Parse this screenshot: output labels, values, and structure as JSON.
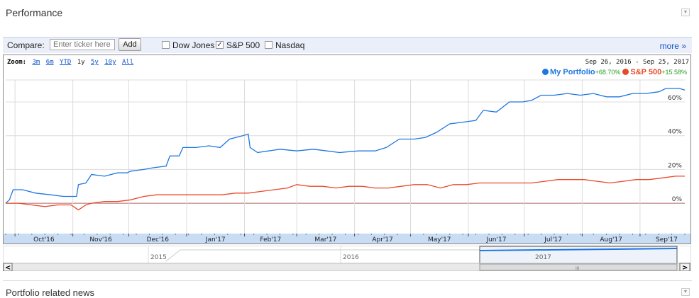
{
  "header": {
    "title": "Performance"
  },
  "compare": {
    "label": "Compare:",
    "placeholder": "Enter ticker here",
    "add_label": "Add",
    "options": [
      {
        "label": "Dow Jones",
        "checked": false
      },
      {
        "label": "S&P 500",
        "checked": true
      },
      {
        "label": "Nasdaq",
        "checked": false
      }
    ],
    "more_label": "more »"
  },
  "zoom": {
    "label": "Zoom:",
    "options": [
      "3m",
      "6m",
      "YTD",
      "1y",
      "5y",
      "10y",
      "All"
    ],
    "active": "1y"
  },
  "date_range": "Sep 26, 2016 - Sep 25, 2017",
  "legend": [
    {
      "name": "My Portfolio",
      "change": "+68.70%",
      "color": "#1f77e0"
    },
    {
      "name": "S&P 500",
      "change": "+15.58%",
      "color": "#e8492a"
    }
  ],
  "navigator": {
    "years": [
      "2015",
      "2016",
      "2017"
    ],
    "left_arrow": "<",
    "right_arrow": ">",
    "thumb_grip": "III"
  },
  "footer": {
    "news_title": "Portfolio related news"
  },
  "chart_data": {
    "type": "line",
    "x_ticks": [
      "Oct'16",
      "Nov'16",
      "Dec'16",
      "Jan'17",
      "Feb'17",
      "Mar'17",
      "Apr'17",
      "May'17",
      "Jun'17",
      "Jul'17",
      "Aug'17",
      "Sep'17"
    ],
    "y_ticks": [
      "0%",
      "20%",
      "40%",
      "60%"
    ],
    "ylim": [
      -18,
      73
    ],
    "x_range": [
      "2016-09-26",
      "2017-09-25"
    ],
    "grid": true,
    "series": [
      {
        "name": "My Portfolio",
        "color": "#1f77e0",
        "points": [
          [
            "2016-09-26",
            0
          ],
          [
            "2016-09-28",
            2
          ],
          [
            "2016-09-30",
            8
          ],
          [
            "2016-10-05",
            8
          ],
          [
            "2016-10-12",
            6
          ],
          [
            "2016-10-20",
            5
          ],
          [
            "2016-10-27",
            4
          ],
          [
            "2016-11-03",
            4
          ],
          [
            "2016-11-04",
            11
          ],
          [
            "2016-11-08",
            12
          ],
          [
            "2016-11-11",
            17
          ],
          [
            "2016-11-18",
            16
          ],
          [
            "2016-11-25",
            18
          ],
          [
            "2016-11-30",
            18
          ],
          [
            "2016-12-02",
            19
          ],
          [
            "2016-12-09",
            20
          ],
          [
            "2016-12-14",
            21
          ],
          [
            "2016-12-21",
            22
          ],
          [
            "2016-12-23",
            28
          ],
          [
            "2016-12-28",
            28
          ],
          [
            "2016-12-30",
            33
          ],
          [
            "2017-01-06",
            33
          ],
          [
            "2017-01-13",
            34
          ],
          [
            "2017-01-19",
            33
          ],
          [
            "2017-01-24",
            38
          ],
          [
            "2017-01-31",
            40
          ],
          [
            "2017-02-03",
            41
          ],
          [
            "2017-02-04",
            33
          ],
          [
            "2017-02-08",
            30
          ],
          [
            "2017-02-14",
            31
          ],
          [
            "2017-02-20",
            32
          ],
          [
            "2017-03-01",
            31
          ],
          [
            "2017-03-10",
            32
          ],
          [
            "2017-03-17",
            31
          ],
          [
            "2017-03-24",
            30
          ],
          [
            "2017-04-03",
            31
          ],
          [
            "2017-04-12",
            31
          ],
          [
            "2017-04-18",
            33
          ],
          [
            "2017-04-25",
            38
          ],
          [
            "2017-05-03",
            38
          ],
          [
            "2017-05-09",
            39
          ],
          [
            "2017-05-15",
            42
          ],
          [
            "2017-05-22",
            47
          ],
          [
            "2017-05-29",
            48
          ],
          [
            "2017-06-05",
            49
          ],
          [
            "2017-06-09",
            55
          ],
          [
            "2017-06-16",
            54
          ],
          [
            "2017-06-23",
            60
          ],
          [
            "2017-06-30",
            60
          ],
          [
            "2017-07-05",
            61
          ],
          [
            "2017-07-10",
            64
          ],
          [
            "2017-07-17",
            64
          ],
          [
            "2017-07-24",
            65
          ],
          [
            "2017-07-31",
            64
          ],
          [
            "2017-08-07",
            65
          ],
          [
            "2017-08-14",
            63
          ],
          [
            "2017-08-21",
            63
          ],
          [
            "2017-08-28",
            65
          ],
          [
            "2017-09-04",
            65
          ],
          [
            "2017-09-11",
            66
          ],
          [
            "2017-09-15",
            68
          ],
          [
            "2017-09-22",
            68
          ],
          [
            "2017-09-25",
            67
          ]
        ]
      },
      {
        "name": "S&P 500",
        "color": "#e8492a",
        "points": [
          [
            "2016-09-26",
            0
          ],
          [
            "2016-10-03",
            0
          ],
          [
            "2016-10-10",
            -1
          ],
          [
            "2016-10-17",
            -2
          ],
          [
            "2016-10-24",
            -1
          ],
          [
            "2016-10-31",
            -1
          ],
          [
            "2016-11-04",
            -4
          ],
          [
            "2016-11-08",
            -1
          ],
          [
            "2016-11-11",
            0
          ],
          [
            "2016-11-18",
            1
          ],
          [
            "2016-11-25",
            1
          ],
          [
            "2016-12-02",
            2
          ],
          [
            "2016-12-09",
            4
          ],
          [
            "2016-12-16",
            5
          ],
          [
            "2016-12-23",
            5
          ],
          [
            "2016-12-30",
            5
          ],
          [
            "2017-01-06",
            5
          ],
          [
            "2017-01-13",
            5
          ],
          [
            "2017-01-20",
            5
          ],
          [
            "2017-01-27",
            6
          ],
          [
            "2017-02-03",
            6
          ],
          [
            "2017-02-10",
            7
          ],
          [
            "2017-02-17",
            8
          ],
          [
            "2017-02-24",
            9
          ],
          [
            "2017-03-01",
            11
          ],
          [
            "2017-03-08",
            10
          ],
          [
            "2017-03-15",
            10
          ],
          [
            "2017-03-22",
            9
          ],
          [
            "2017-03-29",
            10
          ],
          [
            "2017-04-05",
            10
          ],
          [
            "2017-04-12",
            9
          ],
          [
            "2017-04-19",
            9
          ],
          [
            "2017-04-26",
            10
          ],
          [
            "2017-05-03",
            11
          ],
          [
            "2017-05-10",
            11
          ],
          [
            "2017-05-17",
            9
          ],
          [
            "2017-05-24",
            11
          ],
          [
            "2017-05-31",
            11
          ],
          [
            "2017-06-07",
            12
          ],
          [
            "2017-06-14",
            12
          ],
          [
            "2017-06-21",
            12
          ],
          [
            "2017-06-28",
            12
          ],
          [
            "2017-07-05",
            12
          ],
          [
            "2017-07-12",
            13
          ],
          [
            "2017-07-19",
            14
          ],
          [
            "2017-07-26",
            14
          ],
          [
            "2017-08-02",
            14
          ],
          [
            "2017-08-09",
            13
          ],
          [
            "2017-08-16",
            12
          ],
          [
            "2017-08-23",
            13
          ],
          [
            "2017-08-30",
            14
          ],
          [
            "2017-09-06",
            14
          ],
          [
            "2017-09-13",
            15
          ],
          [
            "2017-09-20",
            16
          ],
          [
            "2017-09-25",
            16
          ]
        ]
      }
    ]
  }
}
